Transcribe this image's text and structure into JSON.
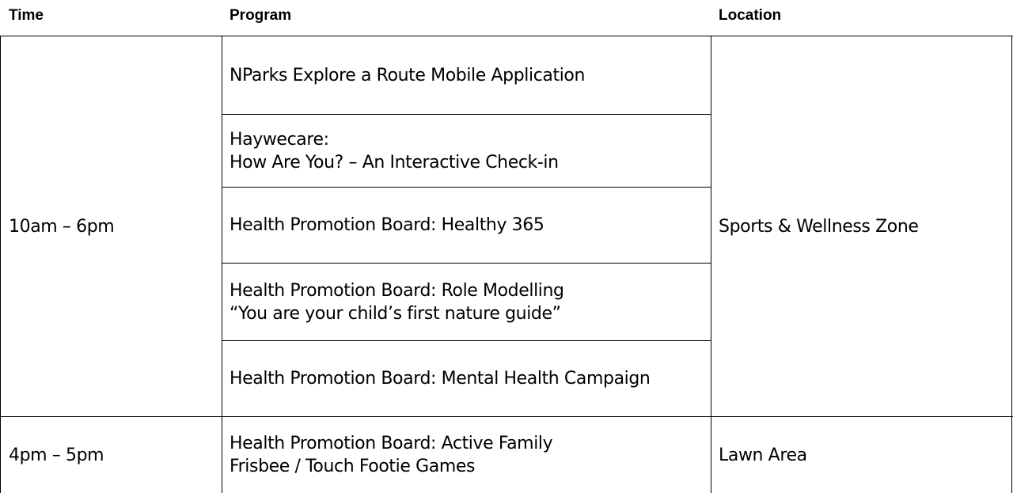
{
  "table": {
    "headers": {
      "time": "Time",
      "program": "Program",
      "location": "Location"
    },
    "groups": [
      {
        "time": "10am – 6pm",
        "location": "Sports & Wellness Zone",
        "programs": [
          {
            "line1": "NParks Explore a Route Mobile Application",
            "line2": ""
          },
          {
            "line1": "Haywecare:",
            "line2": "How Are You? – An Interactive Check-in"
          },
          {
            "line1": "Health Promotion Board: Healthy 365",
            "line2": ""
          },
          {
            "line1": "Health Promotion Board: Role Modelling",
            "line2": "“You are your child’s first nature guide”"
          },
          {
            "line1": "Health Promotion Board: Mental Health Campaign",
            "line2": ""
          }
        ]
      },
      {
        "time": "4pm – 5pm",
        "location": "Lawn Area",
        "programs": [
          {
            "line1": "Health Promotion Board: Active Family",
            "line2": "Frisbee / Touch Footie Games"
          }
        ]
      }
    ]
  }
}
